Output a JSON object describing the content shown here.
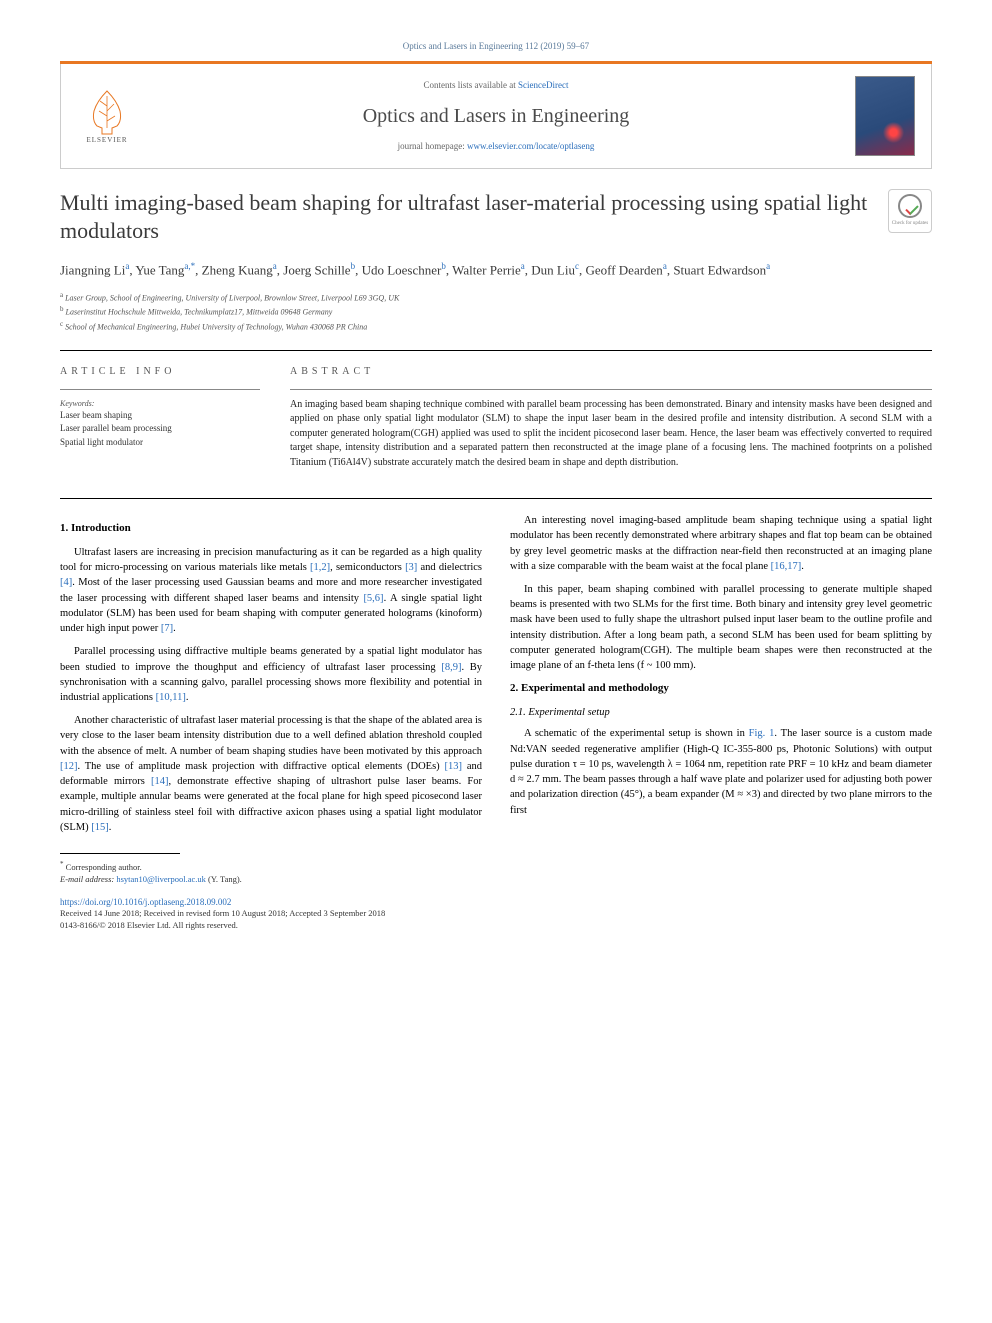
{
  "header": {
    "citation": "Optics and Lasers in Engineering 112 (2019) 59–67",
    "contents_prefix": "Contents lists available at ",
    "contents_link": "ScienceDirect",
    "journal_name": "Optics and Lasers in Engineering",
    "homepage_prefix": "journal homepage: ",
    "homepage_url": "www.elsevier.com/locate/optlaseng",
    "publisher": "ELSEVIER",
    "crossmark_label": "Check for updates"
  },
  "colors": {
    "accent_orange": "#e87722",
    "link_blue": "#2a6ebb",
    "text_gray": "#3a3a3a",
    "border_gray": "#cccccc"
  },
  "article": {
    "title": "Multi imaging-based beam shaping for ultrafast laser-material processing using spatial light modulators",
    "authors_html": "Jiangning Li<sup>a</sup>, Yue Tang<sup>a,*</sup>, Zheng Kuang<sup>a</sup>, Joerg Schille<sup>b</sup>, Udo Loeschner<sup>b</sup>, Walter Perrie<sup>a</sup>, Dun Liu<sup>c</sup>, Geoff Dearden<sup>a</sup>, Stuart Edwardson<sup>a</sup>",
    "affiliations": {
      "a": "Laser Group, School of Engineering, University of Liverpool, Brownlow Street, Liverpool L69 3GQ, UK",
      "b": "Laserinstitut Hochschule Mittweida, Technikumplatz17, Mittweida 09648 Germany",
      "c": "School of Mechanical Engineering, Hubei University of Technology, Wuhan 430068 PR China"
    }
  },
  "info": {
    "heading": "ARTICLE INFO",
    "keywords_label": "Keywords:",
    "keywords": [
      "Laser beam shaping",
      "Laser parallel beam processing",
      "Spatial light modulator"
    ]
  },
  "abstract": {
    "heading": "ABSTRACT",
    "text": "An imaging based beam shaping technique combined with parallel beam processing has been demonstrated. Binary and intensity masks have been designed and applied on phase only spatial light modulator (SLM) to shape the input laser beam in the desired profile and intensity distribution. A second SLM with a computer generated hologram(CGH) applied was used to split the incident picosecond laser beam. Hence, the laser beam was effectively converted to required target shape, intensity distribution and a separated pattern then reconstructed at the image plane of a focusing lens. The machined footprints on a polished Titanium (Ti6Al4V) substrate accurately match the desired beam in shape and depth distribution."
  },
  "sections": {
    "s1_title": "1. Introduction",
    "p1": "Ultrafast lasers are increasing in precision manufacturing as it can be regarded as a high quality tool for micro-processing on various materials like metals [1,2], semiconductors [3] and dielectrics [4]. Most of the laser processing used Gaussian beams and more and more researcher investigated the laser processing with different shaped laser beams and intensity [5,6]. A single spatial light modulator (SLM) has been used for beam shaping with computer generated holograms (kinoform) under high input power [7].",
    "p2": "Parallel processing using diffractive multiple beams generated by a spatial light modulator has been studied to improve the thoughput and efficiency of ultrafast laser processing [8,9]. By synchronisation with a scanning galvo, parallel processing shows more flexibility and potential in industrial applications [10,11].",
    "p3": "Another characteristic of ultrafast laser material processing is that the shape of the ablated area is very close to the laser beam intensity distribution due to a well defined ablation threshold coupled with the absence of melt. A number of beam shaping studies have been motivated by this approach [12]. The use of amplitude mask projection with diffractive optical elements (DOEs) [13] and deformable mirrors [14], demonstrate effective shaping of ultrashort pulse laser beams. For example, multiple annular beams were generated at the focal plane for high speed picosecond laser micro-drilling of stainless steel foil with diffractive axicon phases using a spatial light modulator (SLM) [15].",
    "p4": "An interesting novel imaging-based amplitude beam shaping technique using a spatial light modulator has been recently demonstrated where arbitrary shapes and flat top beam can be obtained by grey level geometric masks at the diffraction near-field then reconstructed at an imaging plane with a size comparable with the beam waist at the focal plane [16,17].",
    "p5": "In this paper, beam shaping combined with parallel processing to generate multiple shaped beams is presented with two SLMs for the first time. Both binary and intensity grey level geometric mask have been used to fully shape the ultrashort pulsed input laser beam to the outline profile and intensity distribution. After a long beam path, a second SLM has been used for beam splitting by computer generated hologram(CGH). The multiple beam shapes were then reconstructed at the image plane of an f-theta lens (f ~ 100 mm).",
    "s2_title": "2. Experimental and methodology",
    "s21_title": "2.1. Experimental setup",
    "p6": "A schematic of the experimental setup is shown in Fig. 1. The laser source is a custom made Nd:VAN seeded regenerative amplifier (High-Q IC-355-800 ps, Photonic Solutions) with output pulse duration τ = 10 ps, wavelength λ = 1064 nm, repetition rate PRF = 10 kHz and beam diameter d ≈ 2.7 mm. The beam passes through a half wave plate and polarizer used for adjusting both power and polarization direction (45°), a beam expander (M ≈ ×3) and directed by two plane mirrors to the first"
  },
  "footer": {
    "corresp_marker": "*",
    "corresp_label": "Corresponding author.",
    "email_label": "E-mail address:",
    "email": "hsytan10@liverpool.ac.uk",
    "email_name": "(Y. Tang).",
    "doi": "https://doi.org/10.1016/j.optlaseng.2018.09.002",
    "received": "Received 14 June 2018; Received in revised form 10 August 2018; Accepted 3 September 2018",
    "copyright": "0143-8166/© 2018 Elsevier Ltd. All rights reserved."
  }
}
